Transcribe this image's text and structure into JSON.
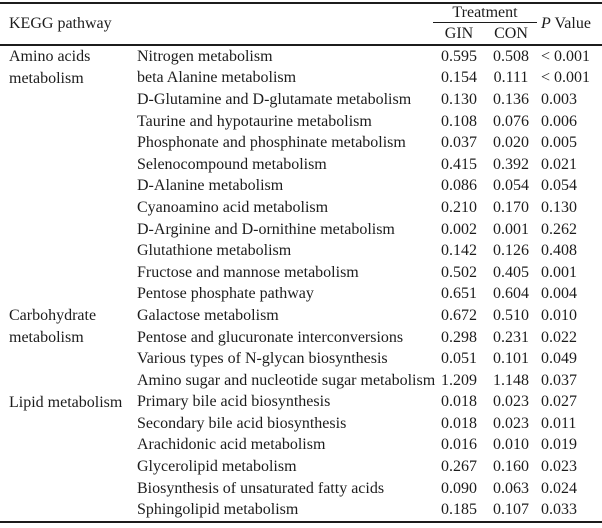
{
  "table": {
    "header": {
      "kegg_pathway": "KEGG pathway",
      "treatment": "Treatment",
      "gin": "GIN",
      "con": "CON",
      "p_italic": "P",
      "p_rest": " Value"
    },
    "groups": [
      {
        "name": "Amino acids metabolism",
        "rows": [
          {
            "pathway": "Nitrogen metabolism",
            "gin": "0.595",
            "con": "0.508",
            "p": "< 0.001"
          },
          {
            "pathway": "beta Alanine metabolism",
            "gin": "0.154",
            "con": "0.111",
            "p": "< 0.001"
          },
          {
            "pathway": "D-Glutamine and D-glutamate metabolism",
            "gin": "0.130",
            "con": "0.136",
            "p": "0.003"
          },
          {
            "pathway": "Taurine and hypotaurine metabolism",
            "gin": "0.108",
            "con": "0.076",
            "p": "0.006"
          },
          {
            "pathway": "Phosphonate and phosphinate metabolism",
            "gin": "0.037",
            "con": "0.020",
            "p": "0.005"
          },
          {
            "pathway": "Selenocompound metabolism",
            "gin": "0.415",
            "con": "0.392",
            "p": "0.021"
          },
          {
            "pathway": "D-Alanine metabolism",
            "gin": "0.086",
            "con": "0.054",
            "p": "0.054"
          },
          {
            "pathway": "Cyanoamino acid metabolism",
            "gin": "0.210",
            "con": "0.170",
            "p": "0.130"
          },
          {
            "pathway": "D-Arginine and D-ornithine metabolism",
            "gin": "0.002",
            "con": "0.001",
            "p": "0.262"
          },
          {
            "pathway": "Glutathione metabolism",
            "gin": "0.142",
            "con": "0.126",
            "p": "0.408"
          },
          {
            "pathway": "Fructose and mannose metabolism",
            "gin": "0.502",
            "con": "0.405",
            "p": "0.001"
          },
          {
            "pathway": "Pentose phosphate pathway",
            "gin": "0.651",
            "con": "0.604",
            "p": "0.004"
          }
        ]
      },
      {
        "name": "Carbohydrate metabolism",
        "rows": [
          {
            "pathway": "Galactose metabolism",
            "gin": "0.672",
            "con": "0.510",
            "p": "0.010"
          },
          {
            "pathway": "Pentose and glucuronate interconversions",
            "gin": "0.298",
            "con": "0.231",
            "p": "0.022"
          },
          {
            "pathway": "Various types of N-glycan biosynthesis",
            "gin": "0.051",
            "con": "0.101",
            "p": "0.049"
          },
          {
            "pathway": "Amino sugar and nucleotide sugar metabolism",
            "gin": "1.209",
            "con": "1.148",
            "p": "0.037"
          }
        ]
      },
      {
        "name": "Lipid metabolism",
        "rows": [
          {
            "pathway": "Primary bile acid biosynthesis",
            "gin": "0.018",
            "con": "0.023",
            "p": "0.027"
          },
          {
            "pathway": "Secondary bile acid biosynthesis",
            "gin": "0.018",
            "con": "0.023",
            "p": "0.011"
          },
          {
            "pathway": "Arachidonic acid metabolism",
            "gin": "0.016",
            "con": "0.010",
            "p": "0.019"
          },
          {
            "pathway": "Glycerolipid metabolism",
            "gin": "0.267",
            "con": "0.160",
            "p": "0.023"
          },
          {
            "pathway": "Biosynthesis of unsaturated fatty acids",
            "gin": "0.090",
            "con": "0.063",
            "p": "0.024"
          },
          {
            "pathway": "Sphingolipid metabolism",
            "gin": "0.185",
            "con": "0.107",
            "p": "0.033"
          }
        ]
      }
    ]
  }
}
